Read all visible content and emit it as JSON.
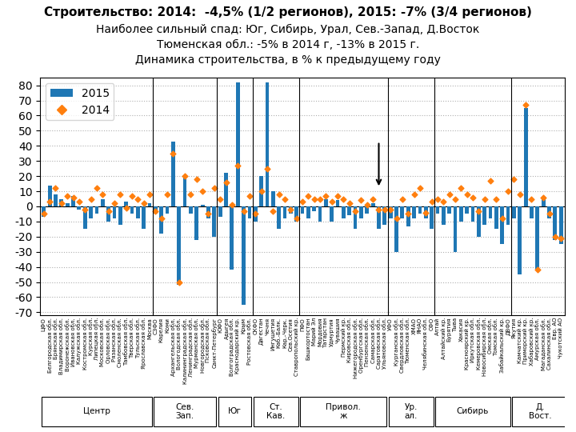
{
  "chart_data": {
    "type": "bar",
    "title": "Строительство: 2014:  -4,5% (1/2 регионов), 2015: -7% (3/4 регионов)",
    "subtitle": [
      "Наиболее сильный спад: Юг, Сибирь, Урал, Сев.-Запад, Д.Восток",
      "Тюменская обл.: -5% в 2014 г, -13% в 2015 г.",
      "Динамика строительства, в % к предыдущему году"
    ],
    "categories": [
      "ЦФО",
      "Белгородская обл.",
      "Брянская обл.",
      "Владимирская обл.",
      "Воронежская обл.",
      "Ивановская обл.",
      "Калужская обл.",
      "Костромская обл.",
      "Курская обл.",
      "Липецкая обл.",
      "Московская обл.",
      "Орловская обл.",
      "Рязанская обл.",
      "Смоленская обл.",
      "Тамбовская обл.",
      "Тверская обл.",
      "Тульская обл.",
      "Ярославская обл.",
      "Москва",
      "СЗФО",
      "Карелия",
      "Коми",
      "Архангельская обл.",
      "Вологодская обл.",
      "Калининградская обл.",
      "Ленинградская обл.",
      "Мурманская обл.",
      "Новгородская обл.",
      "Псковская обл.",
      "Санкт-Петербург",
      "ЮФО",
      "Адыгея",
      "Волгоградская обл.",
      "Краснодарский кр.",
      "Крым",
      "Ростовская обл.",
      "СКФО",
      "Дагестан",
      "Чечня",
      "Ингушетия",
      "Каб.-Балк.",
      "Кар.-Черк.",
      "Сев.Осетия",
      "Ставропольский кр.",
      "ПФО",
      "Башкортостан",
      "Марий Эл",
      "Мордовия",
      "Татарстан",
      "Удмуртия",
      "Чувашия",
      "Пермский кр.",
      "Кировская обл.",
      "Нижегородская обл.",
      "Оренбургская обл.",
      "Пензенская обл.",
      "Самарская обл.",
      "Саратовская обл.",
      "Ульяновская обл.",
      "УФО",
      "Курганская обл.",
      "Свердловская обл.",
      "Тюменская обл.",
      "ХМАО",
      "ЯНАО",
      "Челябинская обл.",
      "СФО",
      "Алтай",
      "Алтайский кр.",
      "Бурятия",
      "Тыва",
      "Хакасия",
      "Красноярский кр.",
      "Иркутская обл.",
      "Кемеровская обл.",
      "Новосибирская обл.",
      "Омская обл.",
      "Томская обл.",
      "Забайкальский кр.",
      "ДВФО",
      "Якутия",
      "Камчатский кр.",
      "Приморский кр.",
      "Хабаровский кр.",
      "Амурская обл.",
      "Магаданская обл.",
      "Сахалинская обл.",
      "Евр. АО",
      "Чукотский АО"
    ],
    "series": [
      {
        "name": "2015",
        "type": "bar",
        "values": [
          -7,
          14,
          8,
          5,
          2,
          7,
          -2,
          -15,
          -8,
          -5,
          5,
          -10,
          -8,
          -12,
          3,
          -5,
          -8,
          -15,
          2,
          -5,
          -18,
          -5,
          43,
          -52,
          20,
          -5,
          -22,
          1,
          -8,
          -20,
          -7,
          22,
          -42,
          82,
          -65,
          -8,
          -10,
          20,
          82,
          10,
          -15,
          -8,
          -5,
          -10,
          -5,
          -8,
          -3,
          -10,
          5,
          -10,
          4,
          -8,
          -6,
          -15,
          -8,
          -5,
          2,
          -15,
          -12,
          -8,
          -30,
          -8,
          -13,
          -8,
          -5,
          -8,
          -15,
          -5,
          -12,
          -5,
          -30,
          -10,
          -5,
          -10,
          -20,
          -12,
          -8,
          -15,
          -25,
          -12,
          -8,
          -45,
          65,
          -8,
          -42,
          5,
          -8,
          -22,
          -25
        ]
      },
      {
        "name": "2014",
        "type": "scatter",
        "marker": "diamond",
        "values": [
          -5,
          3,
          12,
          2,
          7,
          6,
          3,
          -2,
          5,
          12,
          8,
          -3,
          2,
          8,
          -1,
          7,
          5,
          2,
          8,
          -3,
          -8,
          8,
          35,
          -50,
          20,
          8,
          18,
          10,
          -5,
          12,
          5,
          16,
          1,
          27,
          -3,
          7,
          -5,
          10,
          25,
          -3,
          8,
          5,
          -2,
          -8,
          3,
          7,
          5,
          5,
          7,
          3,
          7,
          5,
          2,
          -3,
          4,
          1,
          5,
          -2,
          -2,
          -2,
          -8,
          5,
          -5,
          8,
          12,
          -4,
          3,
          5,
          3,
          8,
          5,
          12,
          8,
          6,
          -3,
          5,
          17,
          5,
          -8,
          10,
          18,
          8,
          67,
          5,
          -42,
          6,
          -5,
          -20,
          -21
        ]
      }
    ],
    "ylim": [
      -72,
      85
    ],
    "yticks": [
      -70,
      -60,
      -50,
      -40,
      -30,
      -20,
      -10,
      0,
      10,
      20,
      30,
      40,
      50,
      60,
      70,
      80
    ],
    "grid": true,
    "legend": "upper left",
    "group_labels": [
      "Центр",
      "Сев.\nЗап.",
      "Юг",
      "Ст.\nКав.",
      "Привол.\nж",
      "Ур.\nал.",
      "Сибирь",
      "Д.\nВост."
    ],
    "group_ends": [
      19,
      30,
      36,
      44,
      59,
      67,
      80,
      90
    ],
    "arrow": {
      "x": 57,
      "y_from": 43,
      "y_to": 12
    }
  }
}
